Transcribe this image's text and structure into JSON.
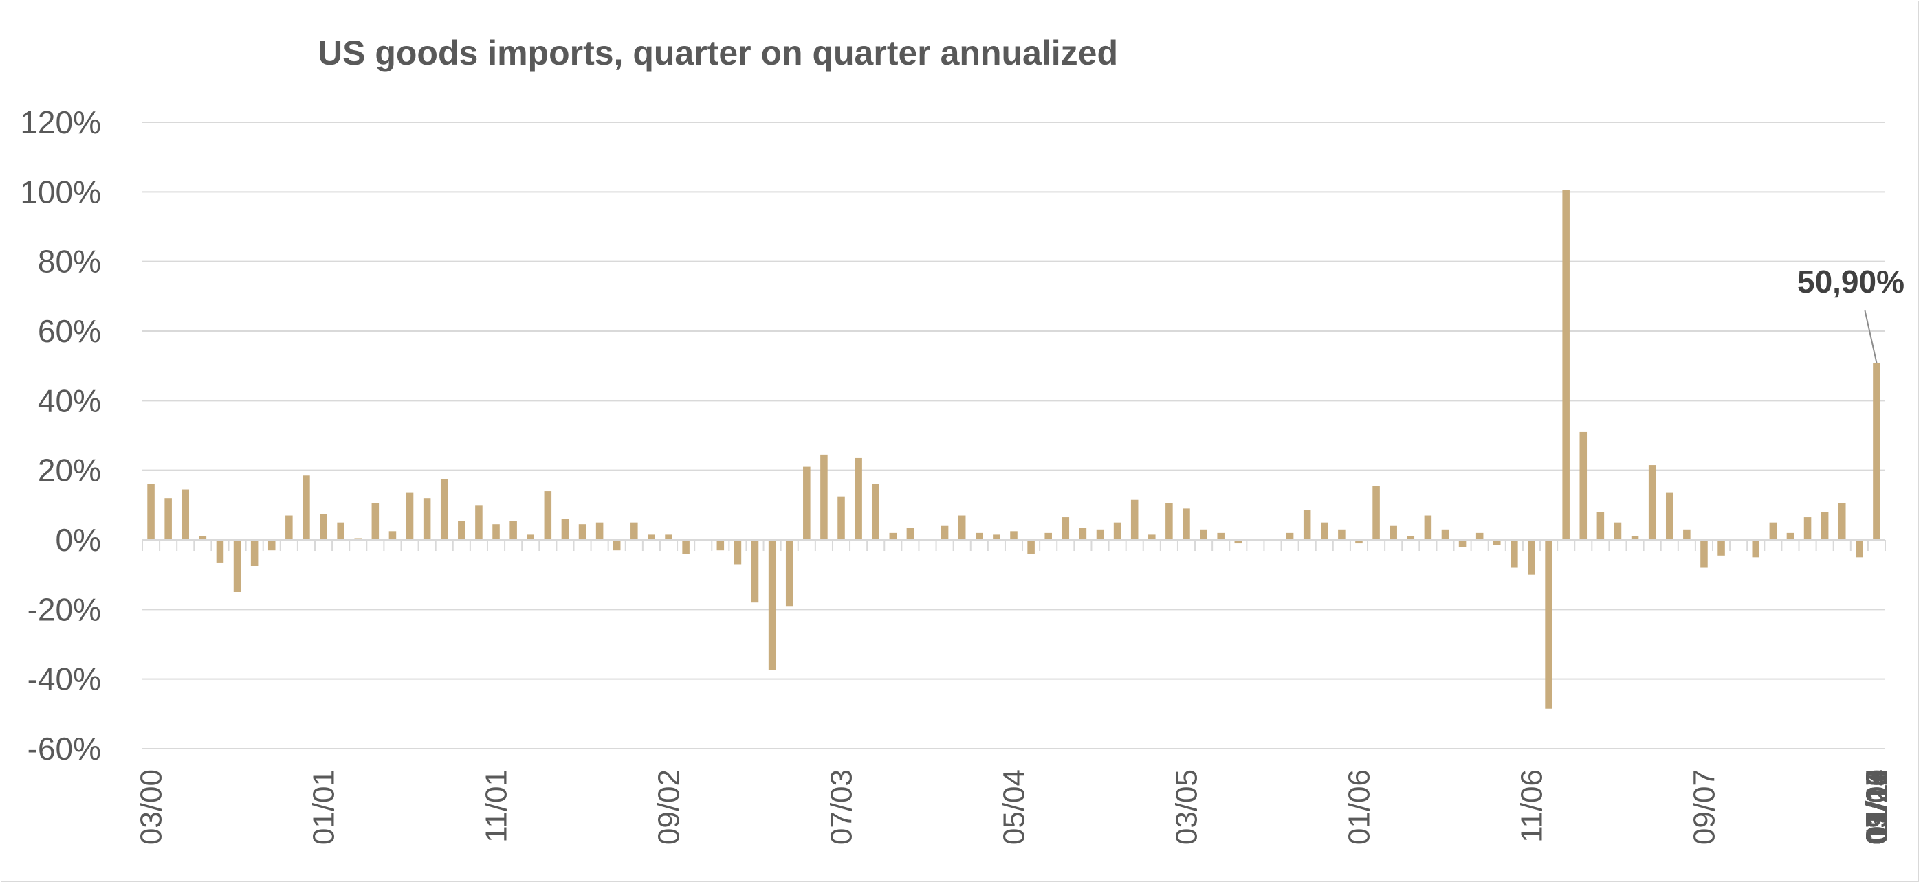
{
  "chart_data": {
    "type": "bar",
    "title": "US goods imports, quarter on quarter annualized",
    "xlabel": "",
    "ylabel": "",
    "ylim": [
      -60,
      120
    ],
    "y_ticks": [
      -60,
      -40,
      -20,
      0,
      20,
      40,
      60,
      80,
      100,
      120
    ],
    "y_tick_labels": [
      "-60%",
      "-40%",
      "-20%",
      "0%",
      "20%",
      "40%",
      "60%",
      "80%",
      "100%",
      "120%"
    ],
    "grid": true,
    "bar_color": "#c8ac7d",
    "grid_color": "#d9d9d9",
    "text_color": "#595959",
    "x_tick_labels": [
      "03/00",
      "01/01",
      "11/01",
      "09/02",
      "07/03",
      "05/04",
      "03/05",
      "01/06",
      "11/06",
      "09/07",
      "07/08",
      "05/09",
      "03/10",
      "01/11",
      "11/11",
      "09/12",
      "07/13",
      "05/14",
      "03/15",
      "01/16",
      "11/16",
      "09/17",
      "07/18",
      "05/19",
      "03/20",
      "01/21",
      "11/21",
      "09/22",
      "07/23",
      "05/24",
      "03/25"
    ],
    "values": [
      16,
      12,
      14.5,
      1,
      -6.5,
      -15,
      -7.5,
      -3,
      7,
      18.5,
      7.5,
      5,
      0.5,
      10.5,
      2.5,
      13.5,
      12,
      17.5,
      5.5,
      10,
      4.5,
      5.5,
      1.5,
      14,
      6,
      4.5,
      5,
      -3,
      5,
      1.5,
      1.5,
      -4,
      0,
      -3,
      -7,
      -18,
      -37.5,
      -19,
      21,
      24.5,
      12.5,
      23.5,
      16,
      2,
      3.5,
      0,
      4,
      7,
      2,
      1.5,
      2.5,
      -4,
      2,
      6.5,
      3.5,
      3,
      5,
      11.5,
      1.5,
      10.5,
      9,
      3,
      2,
      -1,
      0,
      0,
      2,
      8.5,
      5,
      3,
      -1,
      15.5,
      4,
      1,
      7,
      3,
      -2,
      2,
      -1.5,
      -8,
      -10,
      -48.5,
      100.5,
      31,
      8,
      5,
      1,
      21.5,
      13.5,
      3,
      -8,
      -4.5,
      0,
      -5,
      5,
      2,
      6.5,
      8,
      10.5,
      -5,
      50.9
    ],
    "annotation": {
      "text": "50,90%",
      "value": 50.9
    }
  }
}
